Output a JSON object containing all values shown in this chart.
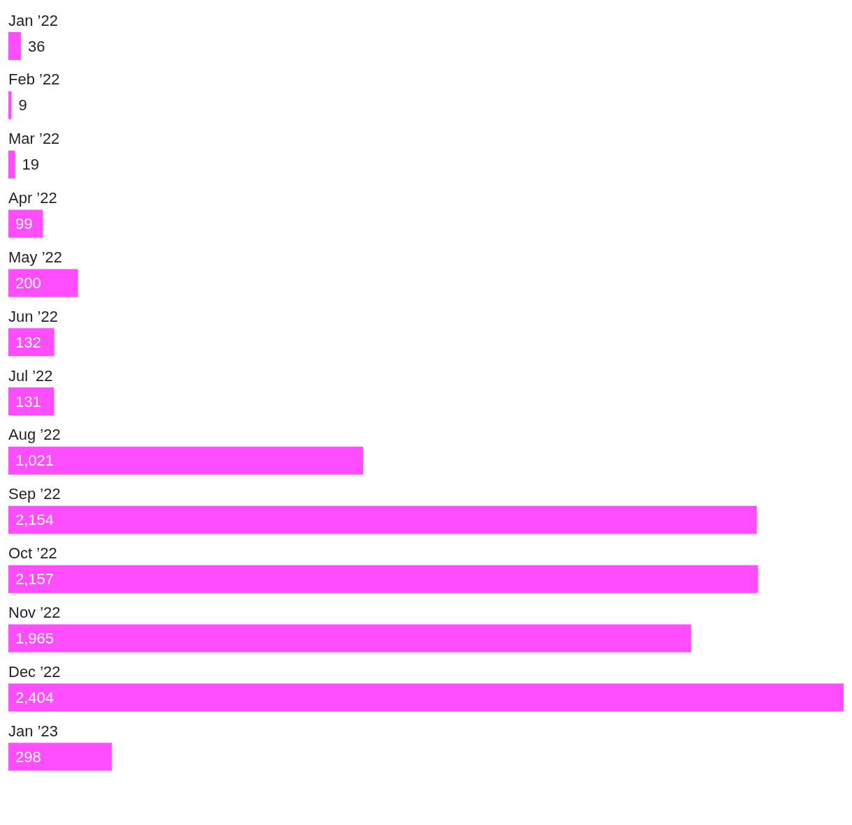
{
  "chart_data": {
    "type": "bar",
    "orientation": "horizontal",
    "categories": [
      "Jan ’22",
      "Feb ’22",
      "Mar ’22",
      "Apr ’22",
      "May ’22",
      "Jun ’22",
      "Jul ’22",
      "Aug ’22",
      "Sep ’22",
      "Oct ’22",
      "Nov ’22",
      "Dec ’22",
      "Jan ’23"
    ],
    "series": [
      {
        "color": "#ff4dff",
        "values": [
          36,
          9,
          19,
          99,
          200,
          132,
          131,
          1021,
          2154,
          2157,
          1965,
          2404,
          298
        ],
        "value_labels": [
          "36",
          "9",
          "19",
          "99",
          "200",
          "132",
          "131",
          "1,021",
          "2,154",
          "2,157",
          "1,965",
          "2,404",
          "298"
        ]
      }
    ]
  }
}
